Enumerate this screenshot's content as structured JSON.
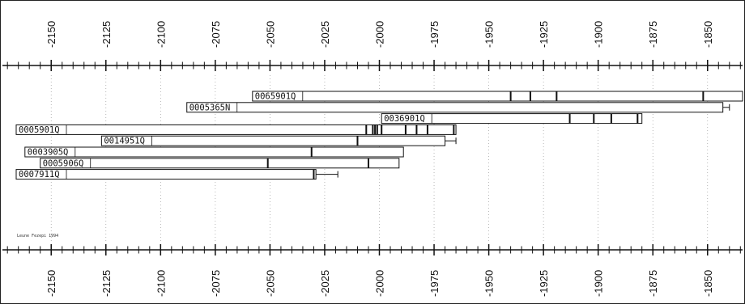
{
  "credit": "Leune Fezepi 1994",
  "axis": {
    "min_year": 2166,
    "max_year": 1834,
    "major_ticks": [
      2150,
      2125,
      2100,
      2075,
      2050,
      2025,
      2000,
      1975,
      1950,
      1925,
      1900,
      1875,
      1850
    ],
    "tick_labels": [
      "-2150",
      "-2125",
      "-2100",
      "-2075",
      "-2050",
      "-2025",
      "-2000",
      "-1975",
      "-1950",
      "-1925",
      "-1900",
      "-1875",
      "-1850"
    ],
    "minor_step": 5
  },
  "series": [
    {
      "id": "0065901Q",
      "label": "0065901Q",
      "start": 2058,
      "end": 1834,
      "markers": [
        1940,
        1931,
        1919,
        1852
      ],
      "extension": null
    },
    {
      "id": "0005365N",
      "label": "0005365N",
      "start": 2088,
      "end": 1843,
      "markers": [],
      "extension": 1840
    },
    {
      "id": "0036901Q",
      "label": "0036901Q",
      "start": 1999,
      "end": 1880,
      "markers": [
        1913,
        1902,
        1894,
        1882
      ],
      "extension": null
    },
    {
      "id": "0005901Q",
      "label": "0005901Q",
      "start": 2166,
      "end": 1965,
      "markers": [
        2006,
        2003,
        2002,
        2001,
        1999,
        1988,
        1983,
        1978,
        1966
      ],
      "extension": null
    },
    {
      "id": "0014951Q",
      "label": "0014951Q",
      "start": 2127,
      "end": 1970,
      "markers": [
        2010
      ],
      "extension": 1965
    },
    {
      "id": "0003905Q",
      "label": "0003905Q",
      "start": 2162,
      "end": 1989,
      "markers": [
        2031
      ],
      "extension": null
    },
    {
      "id": "0005906Q",
      "label": "0005906Q",
      "start": 2155,
      "end": 1991,
      "markers": [
        2051,
        2005
      ],
      "extension": null
    },
    {
      "id": "0007911Q",
      "label": "0007911Q",
      "start": 2166,
      "end": 2029,
      "markers": [
        2030
      ],
      "extension": 2019
    }
  ]
}
